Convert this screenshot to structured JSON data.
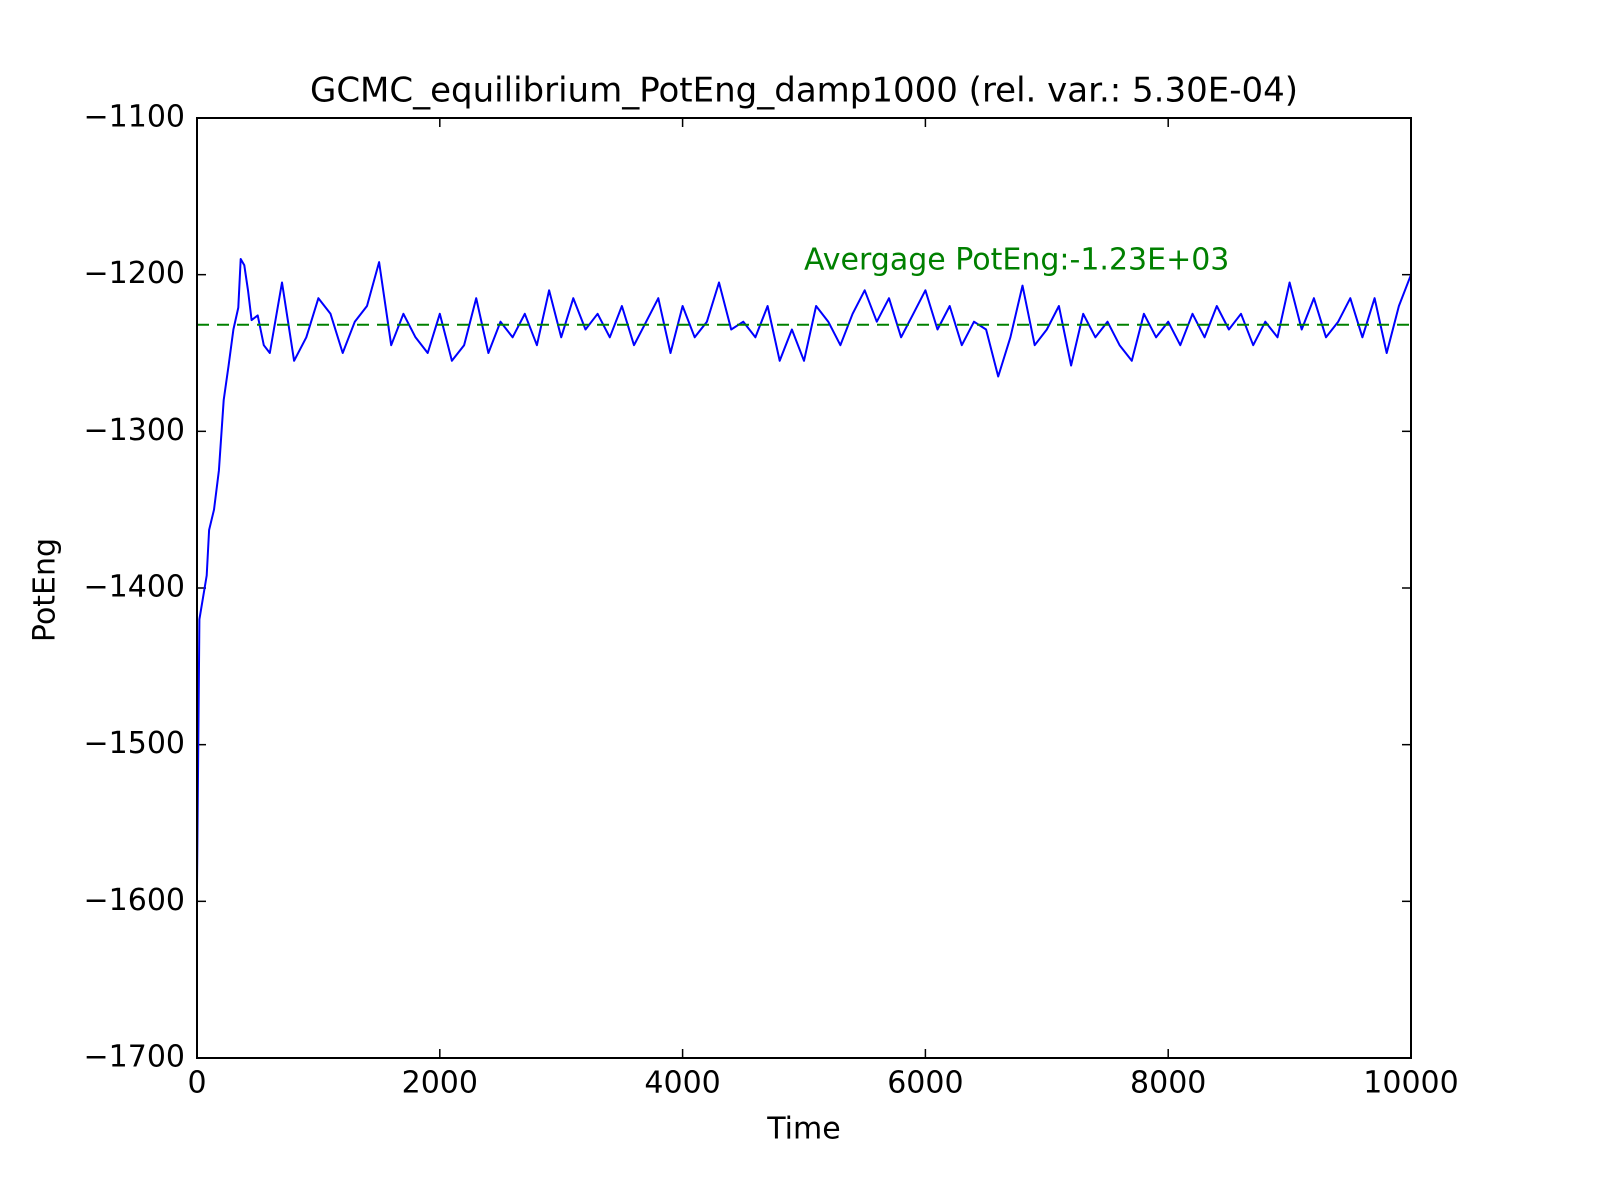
{
  "chart_data": {
    "type": "line",
    "title": "GCMC_equilibrium_PotEng_damp1000 (rel. var.: 5.30E-04)",
    "xlabel": "Time",
    "ylabel": "PotEng",
    "x": [
      0,
      20,
      80,
      100,
      140,
      180,
      220,
      260,
      300,
      340,
      360,
      390,
      420,
      450,
      500,
      550,
      600,
      700,
      800,
      900,
      1000,
      1100,
      1200,
      1300,
      1400,
      1500,
      1600,
      1700,
      1800,
      1900,
      2000,
      2100,
      2200,
      2300,
      2400,
      2500,
      2600,
      2700,
      2800,
      2900,
      3000,
      3100,
      3200,
      3300,
      3400,
      3500,
      3600,
      3700,
      3800,
      3900,
      4000,
      4100,
      4200,
      4300,
      4400,
      4500,
      4600,
      4700,
      4800,
      4900,
      5000,
      5100,
      5200,
      5300,
      5400,
      5500,
      5600,
      5700,
      5800,
      5900,
      6000,
      6100,
      6200,
      6300,
      6400,
      6500,
      6600,
      6700,
      6800,
      6900,
      7000,
      7100,
      7200,
      7300,
      7400,
      7500,
      7600,
      7700,
      7800,
      7900,
      8000,
      8100,
      8200,
      8300,
      8400,
      8500,
      8600,
      8700,
      8800,
      8900,
      9000,
      9100,
      9200,
      9300,
      9400,
      9500,
      9600,
      9700,
      9800,
      9900,
      10000
    ],
    "values": [
      -1590,
      -1420,
      -1392,
      -1363,
      -1350,
      -1325,
      -1280,
      -1258,
      -1235,
      -1221,
      -1190,
      -1194,
      -1210,
      -1229,
      -1226,
      -1245,
      -1250,
      -1205,
      -1255,
      -1240,
      -1215,
      -1225,
      -1250,
      -1230,
      -1220,
      -1192,
      -1245,
      -1225,
      -1240,
      -1250,
      -1225,
      -1255,
      -1245,
      -1215,
      -1250,
      -1230,
      -1240,
      -1225,
      -1245,
      -1210,
      -1240,
      -1215,
      -1235,
      -1225,
      -1240,
      -1220,
      -1245,
      -1230,
      -1215,
      -1250,
      -1220,
      -1240,
      -1230,
      -1205,
      -1235,
      -1230,
      -1240,
      -1220,
      -1255,
      -1235,
      -1255,
      -1220,
      -1230,
      -1245,
      -1225,
      -1210,
      -1230,
      -1215,
      -1240,
      -1225,
      -1210,
      -1235,
      -1220,
      -1245,
      -1230,
      -1235,
      -1265,
      -1240,
      -1207,
      -1245,
      -1235,
      -1220,
      -1258,
      -1225,
      -1240,
      -1230,
      -1245,
      -1255,
      -1225,
      -1240,
      -1230,
      -1245,
      -1225,
      -1240,
      -1220,
      -1235,
      -1225,
      -1245,
      -1230,
      -1240,
      -1205,
      -1235,
      -1215,
      -1240,
      -1230,
      -1215,
      -1240,
      -1215,
      -1250,
      -1220,
      -1200
    ],
    "color": "#0000ff",
    "average": {
      "value": -1232,
      "color": "#008000",
      "label": "Avergage PotEng:-1.23E+03"
    },
    "xlim": [
      0,
      10000
    ],
    "xticks": [
      0,
      2000,
      4000,
      6000,
      8000,
      10000
    ],
    "ylim": [
      -1700,
      -1100
    ],
    "yticks": [
      {
        "value": -1700,
        "label": "−1700"
      },
      {
        "value": -1600,
        "label": "−1600"
      },
      {
        "value": -1500,
        "label": "−1500"
      },
      {
        "value": -1400,
        "label": "−1400"
      },
      {
        "value": -1300,
        "label": "−1300"
      },
      {
        "value": -1200,
        "label": "−1200"
      },
      {
        "value": -1100,
        "label": "−1100"
      }
    ],
    "grid": false
  }
}
